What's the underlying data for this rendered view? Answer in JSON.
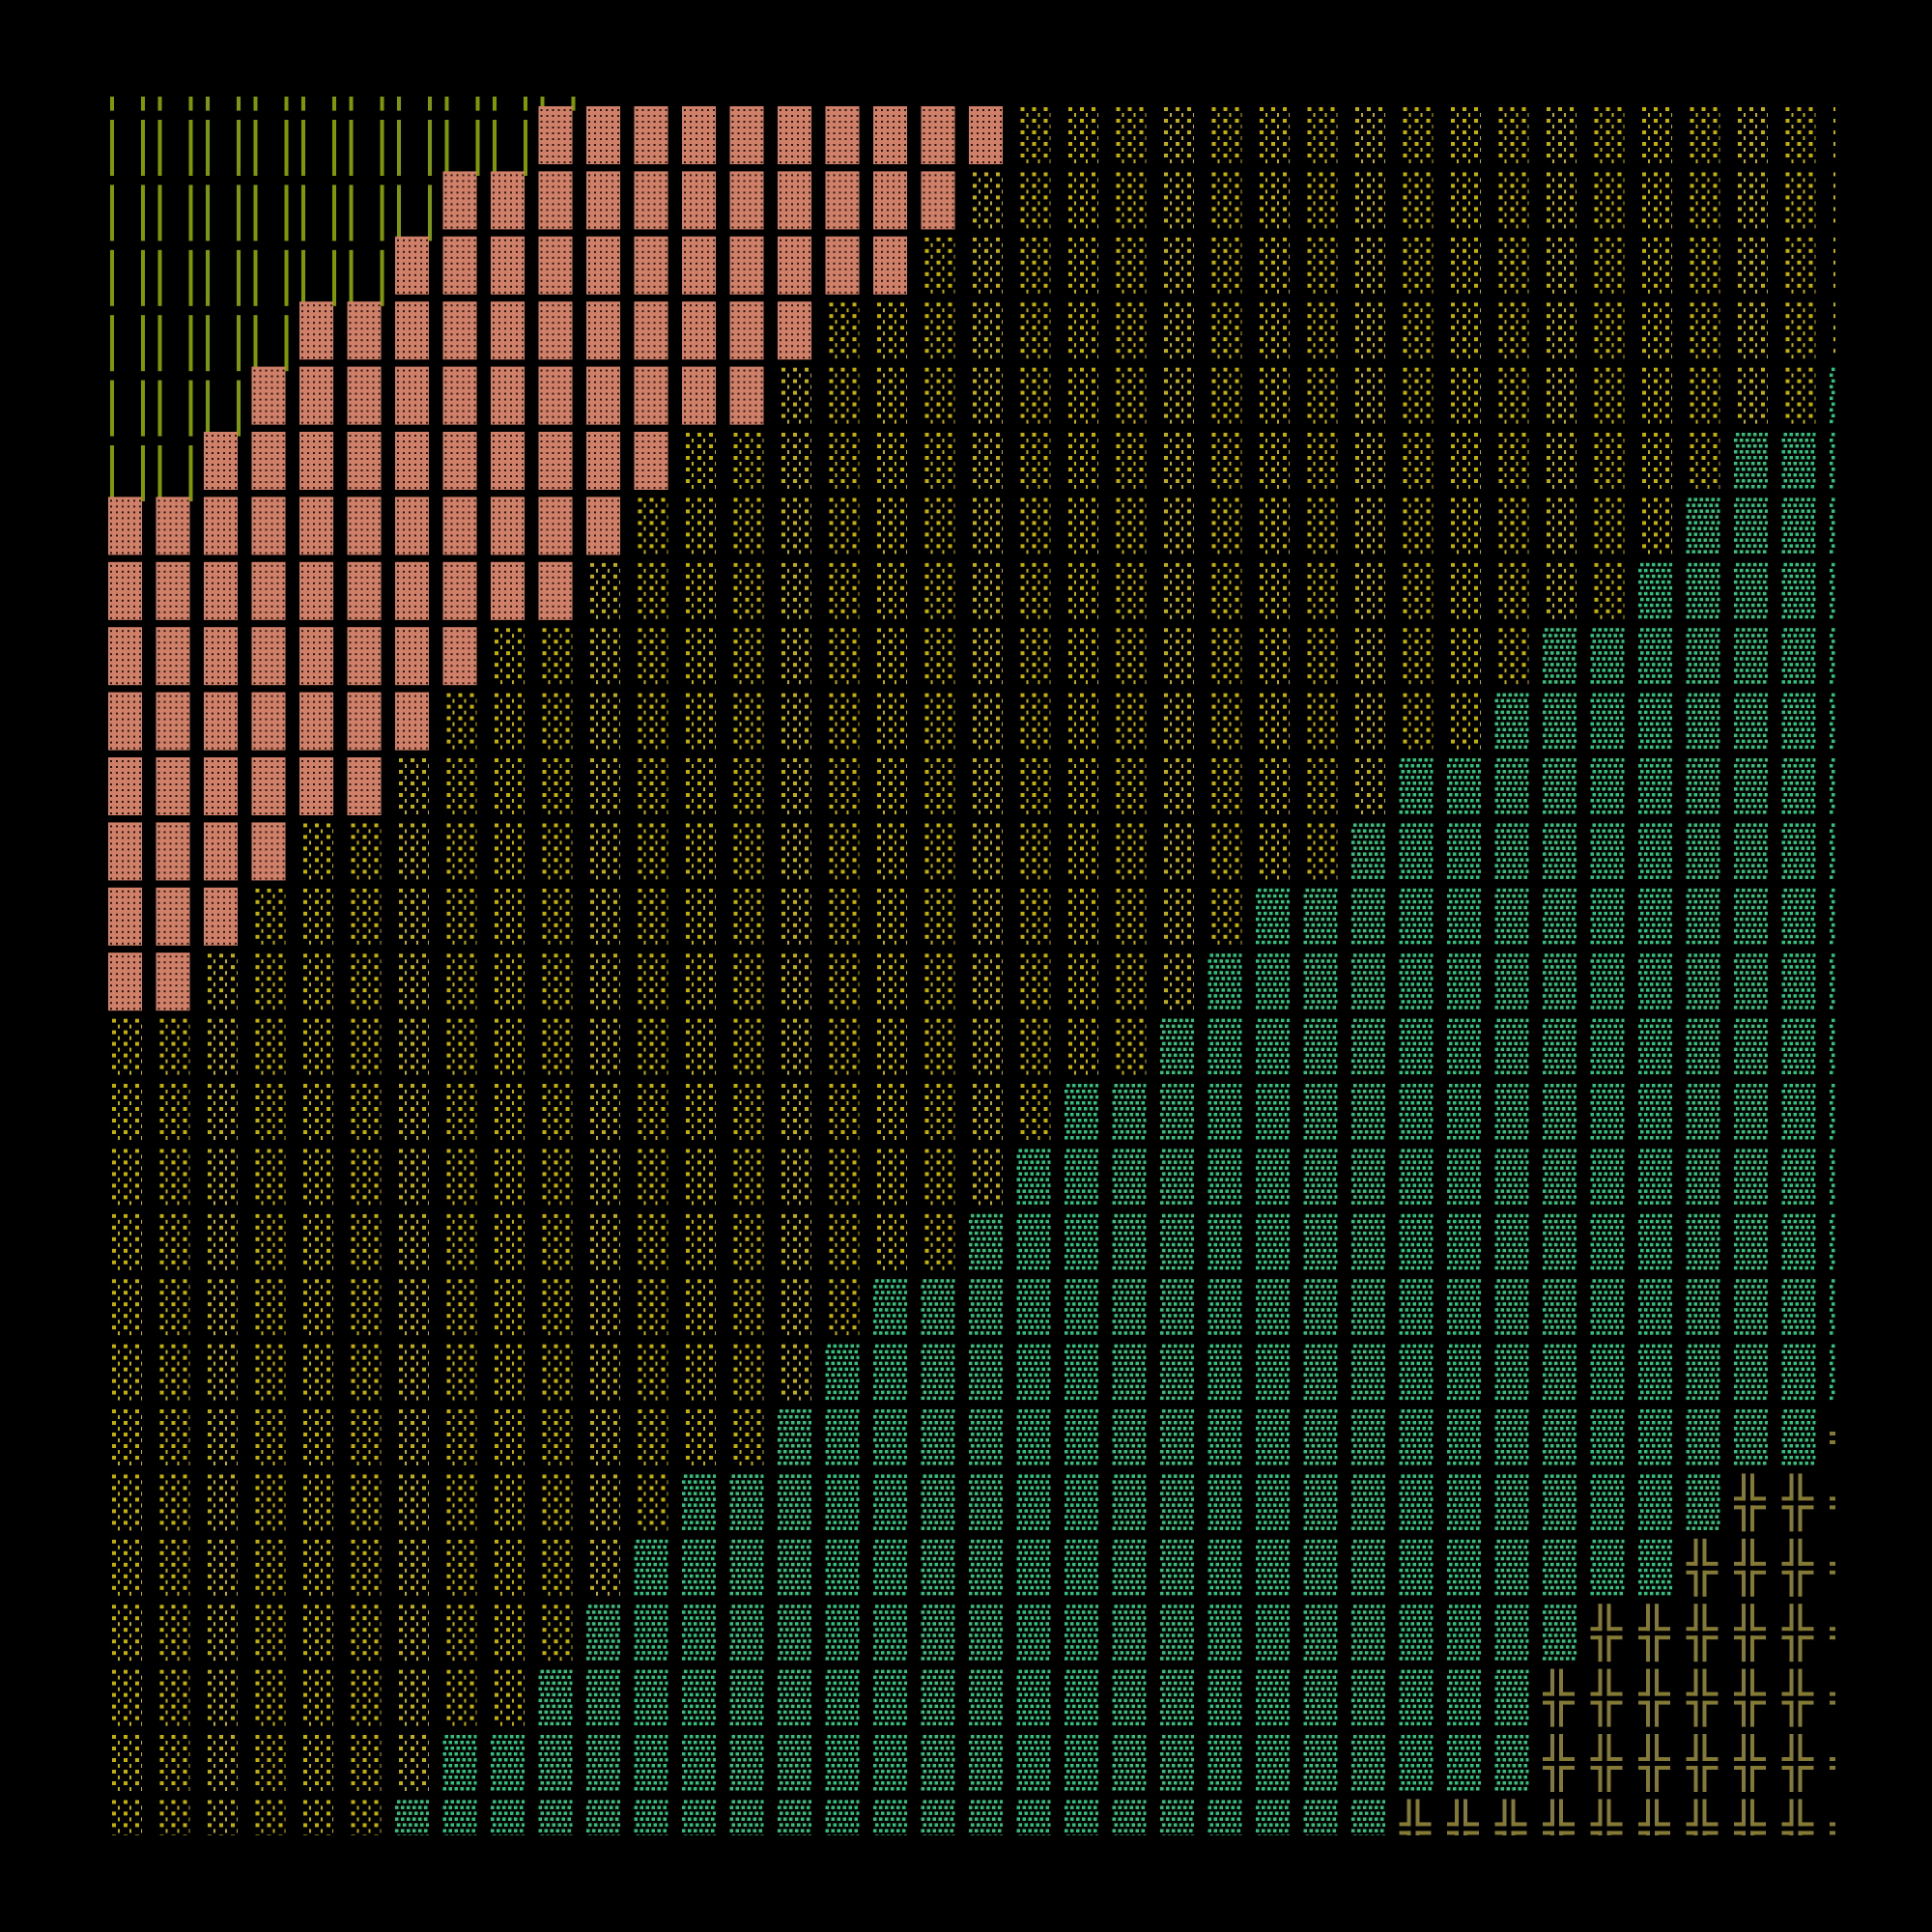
{
  "background": "#000000",
  "glyph_colors": {
    "║": "#7f9a00",
    "▓": "#d08068",
    "░": "#c4b000",
    "▒": "#2ec27e",
    "╬": "#857a35"
  },
  "glyph_names": {
    "║": "double-vertical-line-glyph",
    "▓": "dark-shade-glyph",
    "░": "light-shade-glyph",
    "▒": "medium-shade-glyph",
    "╬": "double-cross-glyph"
  },
  "top_partial_row": "║║║║║║║║║║",
  "rows": [
    "║║║║║║║║║▓▓▓▓▓▓▓▓▓▓░░░░░░░░░░░░░░░░░░",
    "║║║║║║║▓▓▓▓▓▓▓▓▓▓▓░░░░░░░░░░░░░░░░░░░",
    "║║║║║║▓▓▓▓▓▓▓▓▓▓▓░░░░░░░░░░░░░░░░░░░░",
    "║║║║▓▓▓▓▓▓▓▓▓▓▓░░░░░░░░░░░░░░░░░░░░░░",
    "║║║▓▓▓▓▓▓▓▓▓▓▓░░░░░░░░░░░░░░░░░░░░░░▒",
    "║║▓▓▓▓▓▓▓▓▓▓░░░░░░░░░░░░░░░░░░░░░░▒▒▒",
    "▓▓▓▓▓▓▓▓▓▓▓░░░░░░░░░░░░░░░░░░░░░░▒▒▒▒",
    "▓▓▓▓▓▓▓▓▓▓░░░░░░░░░░░░░░░░░░░░░░▒▒▒▒▒",
    "▓▓▓▓▓▓▓▓░░░░░░░░░░░░░░░░░░░░░░▒▒▒▒▒▒▒",
    "▓▓▓▓▓▓▓░░░░░░░░░░░░░░░░░░░░░░▒▒▒▒▒▒▒▒",
    "▓▓▓▓▓▓░░░░░░░░░░░░░░░░░░░░░▒▒▒▒▒▒▒▒▒▒",
    "▓▓▓▓░░░░░░░░░░░░░░░░░░░░░░▒▒▒▒▒▒▒▒▒▒▒",
    "▓▓▓░░░░░░░░░░░░░░░░░░░░░▒▒▒▒▒▒▒▒▒▒▒▒▒",
    "▓▓░░░░░░░░░░░░░░░░░░░░░▒▒▒▒▒▒▒▒▒▒▒▒▒▒",
    "░░░░░░░░░░░░░░░░░░░░░░▒▒▒▒▒▒▒▒▒▒▒▒▒▒▒",
    "░░░░░░░░░░░░░░░░░░░░▒▒▒▒▒▒▒▒▒▒▒▒▒▒▒▒▒",
    "░░░░░░░░░░░░░░░░░░░▒▒▒▒▒▒▒▒▒▒▒▒▒▒▒▒▒▒",
    "░░░░░░░░░░░░░░░░░░▒▒▒▒▒▒▒▒▒▒▒▒▒▒▒▒▒▒▒",
    "░░░░░░░░░░░░░░░░▒▒▒▒▒▒▒▒▒▒▒▒▒▒▒▒▒▒▒▒▒",
    "░░░░░░░░░░░░░░░▒▒▒▒▒▒▒▒▒▒▒▒▒▒▒▒▒▒▒▒▒▒",
    "░░░░░░░░░░░░░░▒▒▒▒▒▒▒▒▒▒▒▒▒▒▒▒▒▒▒▒▒▒╬",
    "░░░░░░░░░░░░▒▒▒▒▒▒▒▒▒▒▒▒▒▒▒▒▒▒▒▒▒▒╬╬╬",
    "░░░░░░░░░░░▒▒▒▒▒▒▒▒▒▒▒▒▒▒▒▒▒▒▒▒▒▒╬╬╬╬",
    "░░░░░░░░░░▒▒▒▒▒▒▒▒▒▒▒▒▒▒▒▒▒▒▒▒▒╬╬╬╬╬╬",
    "░░░░░░░░░▒▒▒▒▒▒▒▒▒▒▒▒▒▒▒▒▒▒▒▒▒╬╬╬╬╬╬╬",
    "░░░░░░░▒▒▒▒▒▒▒▒▒▒▒▒▒▒▒▒▒▒▒▒▒▒▒╬╬╬╬╬╬╬╬",
    "░░░░░░▒▒▒▒▒▒▒▒▒▒▒▒▒▒▒▒▒▒▒▒▒╬╬╬╬╬╬╬╬╬╬"
  ]
}
